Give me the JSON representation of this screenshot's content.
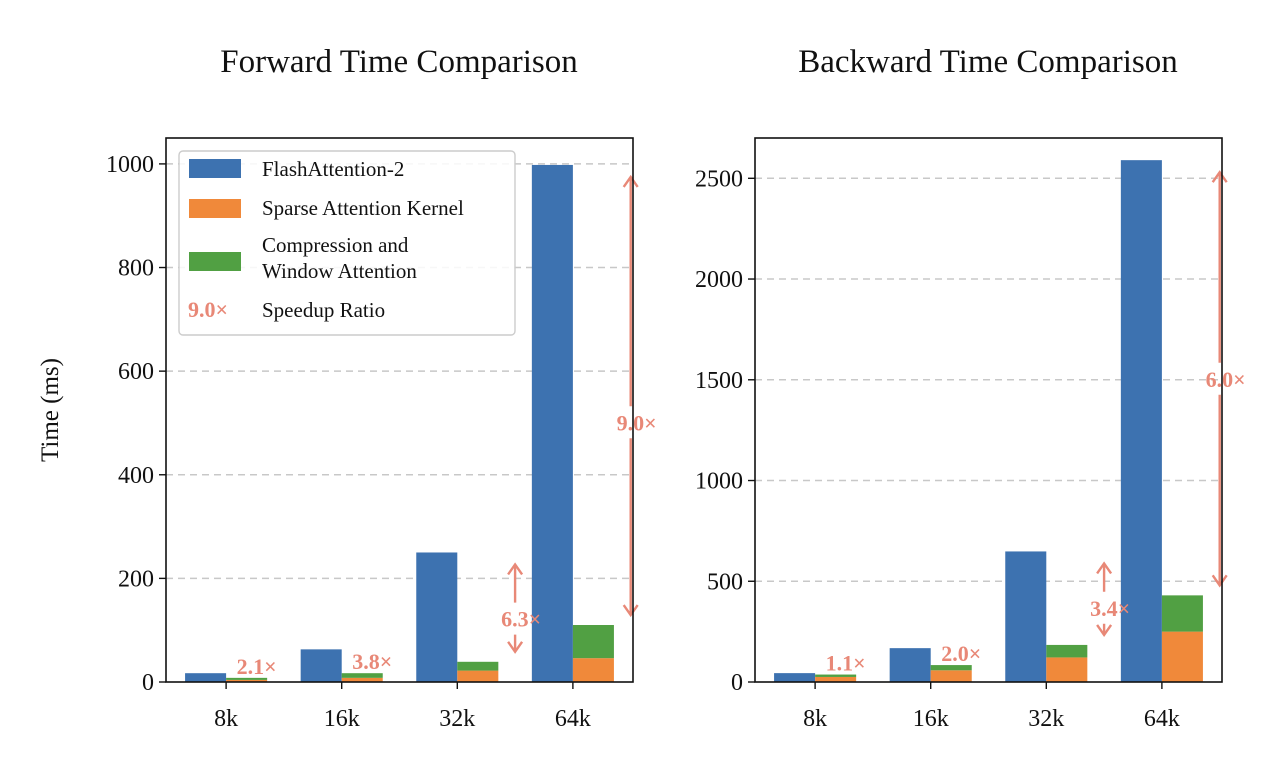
{
  "colors": {
    "flash": "#3d72b0",
    "sparse": "#f0893a",
    "compression": "#51a043",
    "speedup": "#e88877",
    "grid": "#c8c8c8"
  },
  "legend": {
    "flash": "FlashAttention-2",
    "sparse": "Sparse Attention Kernel",
    "compression_line1": "Compression and",
    "compression_line2": "Window Attention",
    "speedup_sample": "9.0×",
    "speedup_label": "Speedup Ratio",
    "placement": "upper-left of forward chart"
  },
  "chart_data": [
    {
      "type": "bar",
      "title": "Forward Time Comparison",
      "xlabel": "",
      "ylabel": "Time (ms)",
      "categories": [
        "8k",
        "16k",
        "32k",
        "64k"
      ],
      "ylim": [
        0,
        1050
      ],
      "yticks": [
        0,
        200,
        400,
        600,
        800,
        1000
      ],
      "ytick_labels": [
        "0",
        "200",
        "400",
        "600",
        "800",
        "1000"
      ],
      "grid": true,
      "series": [
        {
          "name": "FlashAttention-2",
          "values": [
            17,
            63,
            250,
            998
          ]
        },
        {
          "name": "Sparse Attention Kernel",
          "stack": "nsa",
          "values": [
            4,
            8,
            22,
            46
          ]
        },
        {
          "name": "Compression and Window Attention",
          "stack": "nsa",
          "values": [
            4,
            9,
            17,
            64
          ]
        }
      ],
      "speedup_labels": [
        "2.1×",
        "3.8×",
        "6.3×",
        "9.0×"
      ]
    },
    {
      "type": "bar",
      "title": "Backward Time Comparison",
      "xlabel": "",
      "ylabel": "",
      "categories": [
        "8k",
        "16k",
        "32k",
        "64k"
      ],
      "ylim": [
        0,
        2700
      ],
      "yticks": [
        0,
        500,
        1000,
        1500,
        2000,
        2500
      ],
      "ytick_labels": [
        "0",
        "500",
        "1000",
        "1500",
        "2000",
        "2500"
      ],
      "grid": true,
      "series": [
        {
          "name": "FlashAttention-2",
          "values": [
            44,
            168,
            648,
            2590
          ]
        },
        {
          "name": "Sparse Attention Kernel",
          "stack": "nsa",
          "values": [
            25,
            58,
            122,
            250
          ]
        },
        {
          "name": "Compression and Window Attention",
          "stack": "nsa",
          "values": [
            12,
            26,
            62,
            180
          ]
        }
      ],
      "speedup_labels": [
        "1.1×",
        "2.0×",
        "3.4×",
        "6.0×"
      ]
    }
  ]
}
